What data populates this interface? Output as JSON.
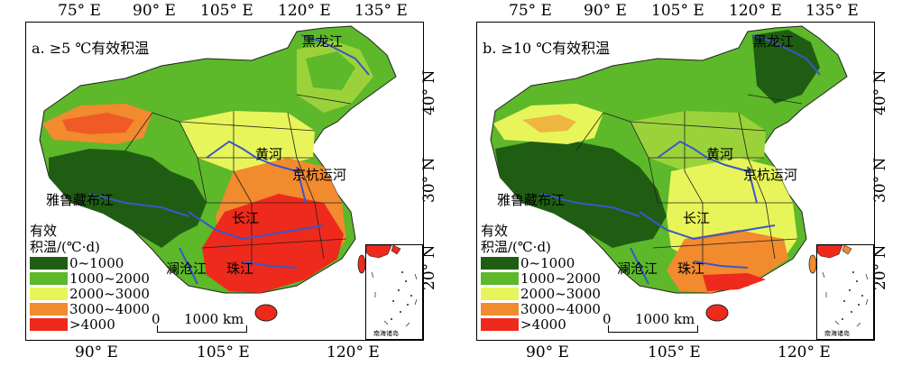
{
  "axes": {
    "top_ticks": [
      "75° E",
      "90° E",
      "105° E",
      "120° E",
      "135° E"
    ],
    "bottom_ticks": [
      "90° E",
      "105° E",
      "120° E"
    ],
    "right_ticks": [
      "40° N",
      "30° N",
      "20° N"
    ]
  },
  "panels": [
    {
      "title": "a. ≥5 ℃有效积温",
      "labels": {
        "heilongjiang": "黑龙江",
        "huanghe": "黄河",
        "jinghang": "京杭运河",
        "yarlung": "雅鲁藏布江",
        "changjiang": "长江",
        "lancang": "澜沧江",
        "zhujiang": "珠江"
      },
      "legend_title_1": "有效",
      "legend_title_2": "积温/(℃·d)",
      "legend": [
        {
          "label": "0~1000",
          "color": "#1f5e12"
        },
        {
          "label": "1000~2000",
          "color": "#5db82a"
        },
        {
          "label": "2000~3000",
          "color": "#e8f55a"
        },
        {
          "label": "3000~4000",
          "color": "#f28a2e"
        },
        {
          "label": ">4000",
          "color": "#ee2a1c"
        }
      ],
      "scale_zero": "0",
      "scale_label": "1000 km",
      "inset_label": "南海诸岛"
    },
    {
      "title": "b. ≥10 ℃有效积温",
      "labels": {
        "heilongjiang": "黑龙江",
        "huanghe": "黄河",
        "jinghang": "京杭运河",
        "yarlung": "雅鲁藏布江",
        "changjiang": "长江",
        "lancang": "澜沧江",
        "zhujiang": "珠江"
      },
      "legend_title_1": "有效",
      "legend_title_2": "积温/(℃·d)",
      "legend": [
        {
          "label": "0~1000",
          "color": "#1f5e12"
        },
        {
          "label": "1000~2000",
          "color": "#5db82a"
        },
        {
          "label": "2000~3000",
          "color": "#e8f55a"
        },
        {
          "label": "3000~4000",
          "color": "#f28a2e"
        },
        {
          "label": ">4000",
          "color": "#ee2a1c"
        }
      ],
      "scale_zero": "0",
      "scale_label": "1000 km",
      "inset_label": "南海诸岛"
    }
  ]
}
